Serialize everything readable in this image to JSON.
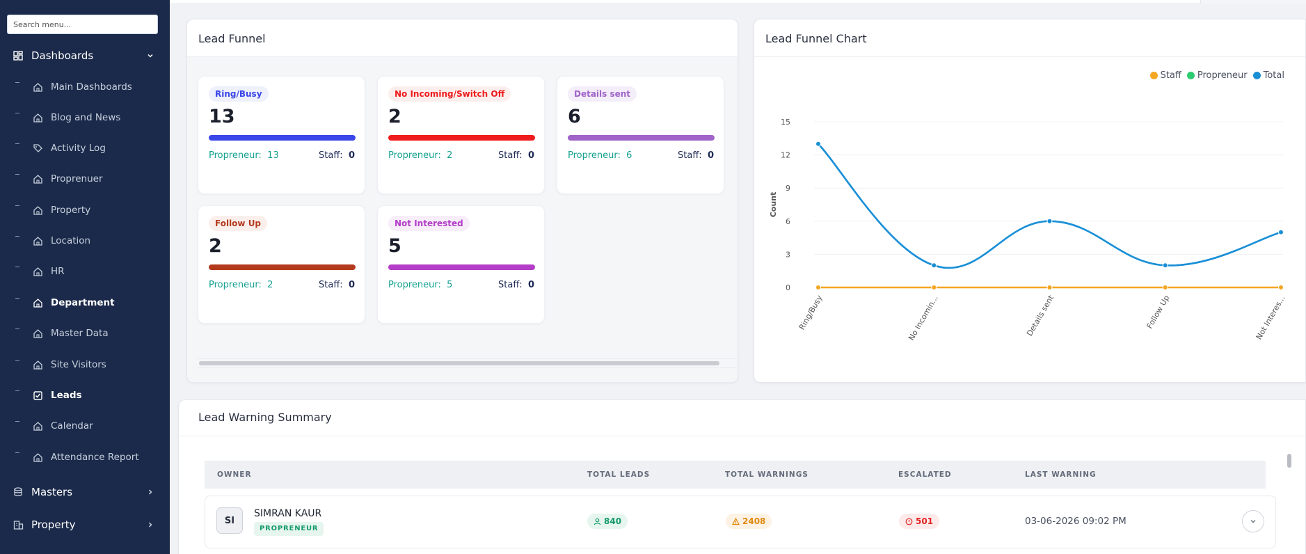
{
  "sidebar": {
    "search_placeholder": "Search menu...",
    "groups": {
      "dashboards": {
        "label": "Dashboards"
      },
      "masters": {
        "label": "Masters"
      },
      "property": {
        "label": "Property"
      }
    },
    "items": [
      {
        "label": "Main Dashboards",
        "icon": "home-icon"
      },
      {
        "label": "Blog and News",
        "icon": "home-icon"
      },
      {
        "label": "Activity Log",
        "icon": "tag-icon"
      },
      {
        "label": "Proprenuer",
        "icon": "home-icon"
      },
      {
        "label": "Property",
        "icon": "home-icon"
      },
      {
        "label": "Location",
        "icon": "home-icon"
      },
      {
        "label": "HR",
        "icon": "home-icon"
      },
      {
        "label": "Department",
        "icon": "home-icon"
      },
      {
        "label": "Master Data",
        "icon": "home-icon"
      },
      {
        "label": "Site Visitors",
        "icon": "home-icon"
      },
      {
        "label": "Leads",
        "icon": "checkbox-icon"
      },
      {
        "label": "Calendar",
        "icon": "home-icon"
      },
      {
        "label": "Attendance Report",
        "icon": "home-icon"
      }
    ]
  },
  "funnel": {
    "title": "Lead Funnel",
    "cards": [
      {
        "badge": "Ring/Busy",
        "count": "13",
        "prop_label": "Propreneur:",
        "prop_value": "13",
        "staff_label": "Staff:",
        "staff_value": "0",
        "color": "#3a46e8",
        "badge_bg": "#eef0fb"
      },
      {
        "badge": "No Incoming/Switch Off",
        "count": "2",
        "prop_label": "Propreneur:",
        "prop_value": "2",
        "staff_label": "Staff:",
        "staff_value": "0",
        "color": "#ee1c1c",
        "badge_bg": "#fdeeee"
      },
      {
        "badge": "Details sent",
        "count": "6",
        "prop_label": "Propreneur:",
        "prop_value": "6",
        "staff_label": "Staff:",
        "staff_value": "0",
        "color": "#a064c8",
        "badge_bg": "#f4eefa"
      },
      {
        "badge": "Follow Up",
        "count": "2",
        "prop_label": "Propreneur:",
        "prop_value": "2",
        "staff_label": "Staff:",
        "staff_value": "0",
        "color": "#b43a1e",
        "badge_bg": "#fbefec"
      },
      {
        "badge": "Not Interested",
        "count": "5",
        "prop_label": "Propreneur:",
        "prop_value": "5",
        "staff_label": "Staff:",
        "staff_value": "0",
        "color": "#b43ec8",
        "badge_bg": "#f7eefa"
      }
    ]
  },
  "chart": {
    "title": "Lead Funnel Chart"
  },
  "chart_data": {
    "type": "line",
    "categories": [
      "Ring/Busy",
      "No Incomin...",
      "Details sent",
      "Follow Up",
      "Not Interes..."
    ],
    "series": [
      {
        "name": "Staff",
        "color": "#f5a623",
        "values": [
          0,
          0,
          0,
          0,
          0
        ]
      },
      {
        "name": "Propreneur",
        "color": "#2ecc71",
        "values": [
          13,
          2,
          6,
          2,
          5
        ]
      },
      {
        "name": "Total",
        "color": "#1a8fd6",
        "values": [
          13,
          2,
          6,
          2,
          5
        ]
      }
    ],
    "ylabel": "Count",
    "xlabel": "",
    "ylim": [
      0,
      15
    ],
    "yticks": [
      0,
      3,
      6,
      9,
      12,
      15
    ],
    "legend": "top-right",
    "grid": true
  },
  "warnings": {
    "title": "Lead Warning Summary",
    "headers": [
      "OWNER",
      "TOTAL LEADS",
      "TOTAL WARNINGS",
      "ESCALATED",
      "LAST WARNING"
    ],
    "rows": [
      {
        "initials": "SI",
        "name": "SIMRAN KAUR",
        "role": "PROPRENEUR",
        "total_leads": "840",
        "total_warnings": "2408",
        "escalated": "501",
        "last_warning": "03-06-2026 09:02 PM"
      }
    ]
  }
}
